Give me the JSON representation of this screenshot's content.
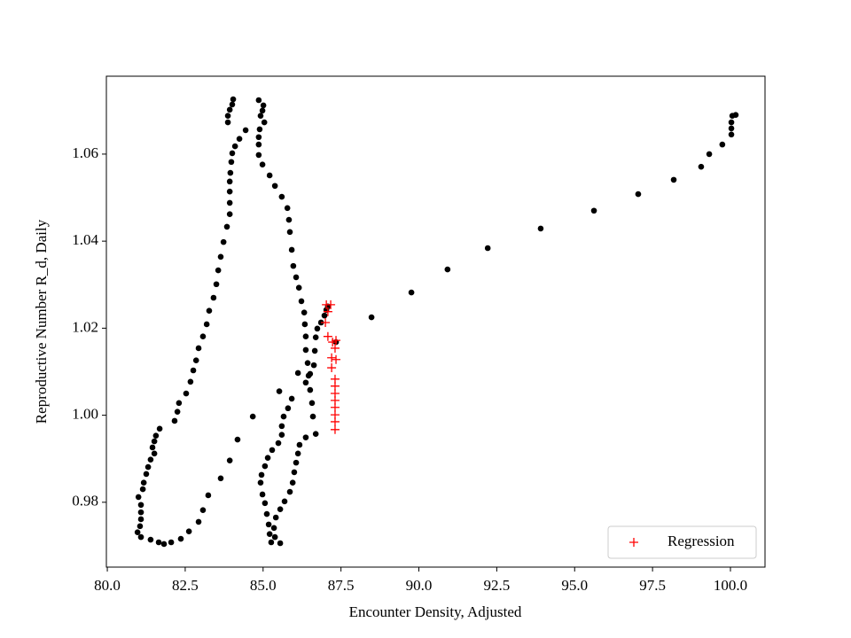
{
  "chart_data": {
    "type": "scatter",
    "xlabel": "Encounter Density, Adjusted",
    "ylabel": "Reproductive Number R_d, Daily",
    "xlim": [
      79.97,
      101.11
    ],
    "ylim": [
      0.9651,
      1.0779
    ],
    "xticks": [
      {
        "value": 80,
        "label": "80.0"
      },
      82.5,
      {
        "value": 85,
        "label": "85.0"
      },
      87.5,
      {
        "value": 90,
        "label": "90.0"
      },
      92.5,
      {
        "value": 95,
        "label": "95.0"
      },
      97.5,
      {
        "value": 100,
        "label": "100.0"
      }
    ],
    "yticks": [
      0.98,
      {
        "value": 1.0,
        "label": "1.00"
      },
      1.02,
      1.04,
      1.06
    ],
    "legend": "lower right",
    "series": [
      {
        "color": "#000000",
        "marker": "circle",
        "x": [
          84.04,
          84.01,
          83.93,
          83.87,
          83.87,
          84.44,
          84.24,
          84.1,
          84.01,
          83.98,
          83.95,
          83.93,
          83.93,
          83.93,
          83.93,
          83.84,
          83.73,
          83.64,
          83.56,
          83.5,
          83.41,
          83.27,
          83.19,
          83.07,
          82.93,
          82.85,
          82.76,
          82.67,
          82.53,
          82.3,
          82.25,
          82.16,
          81.68,
          81.56,
          81.51,
          81.45,
          81.51,
          81.39,
          81.31,
          81.25,
          81.17,
          81.14,
          81.0,
          81.08,
          81.08,
          81.08,
          81.05,
          80.97,
          81.08,
          81.39,
          81.65,
          81.82,
          82.05,
          82.36,
          82.62,
          82.93,
          83.07,
          83.24,
          83.64,
          83.93,
          84.18,
          84.67,
          84.86,
          85.01,
          84.98,
          84.92,
          85.04,
          84.89,
          84.86,
          84.86,
          84.86,
          84.98,
          85.21,
          85.38,
          85.6,
          85.78,
          85.83,
          85.86,
          85.92,
          85.97,
          86.06,
          86.15,
          86.23,
          86.32,
          86.34,
          86.37,
          86.37,
          86.43,
          86.46,
          86.51,
          86.57,
          86.6,
          86.69,
          86.37,
          86.17,
          86.12,
          86.06,
          86.0,
          85.95,
          85.86,
          85.69,
          85.55,
          85.41,
          85.35,
          85.38,
          85.55,
          85.26,
          85.21,
          85.18,
          85.12,
          85.06,
          84.98,
          84.92,
          84.95,
          85.06,
          85.15,
          85.29,
          85.49,
          85.6,
          85.6,
          85.66,
          85.8,
          85.92,
          85.52,
          86.12,
          86.37,
          86.51,
          86.63,
          86.66,
          86.69,
          86.74,
          86.86,
          86.97,
          87.03,
          87.08,
          87.34,
          88.48,
          89.76,
          90.92,
          92.21,
          93.91,
          95.62,
          97.04,
          98.18,
          99.06,
          99.32,
          99.74,
          100.03,
          100.03,
          100.03,
          100.06,
          100.17
        ],
        "values": [
          1.0726,
          1.0714,
          1.0702,
          1.0688,
          1.0673,
          1.0655,
          1.0635,
          1.0618,
          1.0602,
          1.0582,
          1.0557,
          1.0537,
          1.0514,
          1.0488,
          1.0462,
          1.0433,
          1.0398,
          1.0364,
          1.0333,
          1.0301,
          1.027,
          1.024,
          1.0209,
          1.0181,
          1.0154,
          1.0126,
          1.0103,
          1.0077,
          1.005,
          1.0028,
          1.0008,
          0.9987,
          0.9969,
          0.9953,
          0.994,
          0.9926,
          0.9912,
          0.9898,
          0.9881,
          0.9865,
          0.9845,
          0.983,
          0.9812,
          0.9794,
          0.9777,
          0.9761,
          0.9745,
          0.9731,
          0.972,
          0.9714,
          0.9708,
          0.9704,
          0.9708,
          0.9716,
          0.9733,
          0.9755,
          0.9782,
          0.9816,
          0.9855,
          0.9896,
          0.9944,
          0.9997,
          1.0724,
          1.0712,
          1.07,
          1.0688,
          1.0673,
          1.0657,
          1.0639,
          1.0622,
          1.0598,
          1.0576,
          1.0551,
          1.0527,
          1.0502,
          1.0476,
          1.0449,
          1.0421,
          1.038,
          1.0343,
          1.0317,
          1.0293,
          1.0262,
          1.0236,
          1.0209,
          1.0181,
          1.015,
          1.012,
          1.0091,
          1.0058,
          1.0028,
          0.9997,
          0.9957,
          0.9949,
          0.9932,
          0.9912,
          0.9891,
          0.9869,
          0.9845,
          0.9824,
          0.9802,
          0.9784,
          0.9765,
          0.9741,
          0.972,
          0.9706,
          0.9708,
          0.9727,
          0.9749,
          0.9773,
          0.9798,
          0.9818,
          0.9845,
          0.9863,
          0.9883,
          0.9902,
          0.992,
          0.9936,
          0.9955,
          0.9975,
          0.9997,
          1.0016,
          1.0038,
          1.0055,
          1.0097,
          1.0075,
          1.0095,
          1.0115,
          1.0148,
          1.0179,
          1.0199,
          1.0213,
          1.0229,
          1.0242,
          1.025,
          1.0168,
          1.0225,
          1.0282,
          1.0335,
          1.0384,
          1.0429,
          1.047,
          1.0508,
          1.0541,
          1.0571,
          1.06,
          1.0622,
          1.0645,
          1.0659,
          1.0673,
          1.0688,
          1.069
        ]
      },
      {
        "name": "Regression",
        "color": "#ff0000",
        "marker": "plus",
        "x": [
          87.03,
          87.17,
          87.08,
          87.0,
          87.08,
          87.23,
          87.34,
          87.31,
          87.2,
          87.34,
          87.2,
          87.31,
          87.31,
          87.31,
          87.31,
          87.31,
          87.31,
          87.31,
          87.31
        ],
        "values": [
          1.0254,
          1.0254,
          1.0238,
          1.0213,
          1.0181,
          1.0168,
          1.0172,
          1.0154,
          1.0132,
          1.0128,
          1.0109,
          1.0083,
          1.0067,
          1.005,
          1.0034,
          1.0018,
          1.0001,
          0.9985,
          0.9967
        ]
      }
    ]
  }
}
